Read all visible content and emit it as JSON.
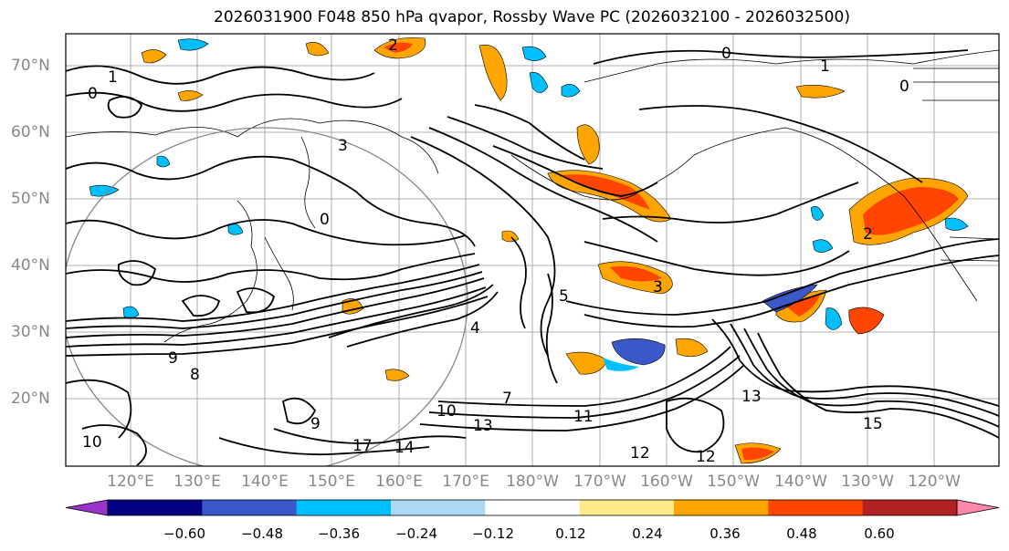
{
  "title": "2026031900 F048 850 hPa qvapor, Rossby Wave PC (2026032100 - 2026032500)",
  "lat_labels": [
    "70°N",
    "60°N",
    "50°N",
    "40°N",
    "30°N",
    "20°N"
  ],
  "lon_labels": [
    "120°E",
    "130°E",
    "140°E",
    "150°E",
    "160°E",
    "170°E",
    "180°W",
    "170°W",
    "160°W",
    "150°W",
    "140°W",
    "130°W",
    "120°W"
  ],
  "colorbar": {
    "colors": [
      "#9933cc",
      "#000080",
      "#3a58c8",
      "#00bfff",
      "#add8f5",
      "#ffffff",
      "#ffea8a",
      "#ffa500",
      "#ff4500",
      "#b22222",
      "#ff88aa"
    ],
    "ticks": [
      "−0.60",
      "−0.48",
      "−0.36",
      "−0.24",
      "−0.12",
      "0.12",
      "0.24",
      "0.36",
      "0.48",
      "0.60"
    ]
  },
  "contour_labels": [
    "0",
    "1",
    "0",
    "1",
    "3",
    "2",
    "0",
    "0",
    "4",
    "3",
    "5",
    "7",
    "2",
    "9",
    "8",
    "10",
    "13",
    "11",
    "12",
    "14",
    "12",
    "13",
    "9",
    "17",
    "10",
    "15"
  ]
}
